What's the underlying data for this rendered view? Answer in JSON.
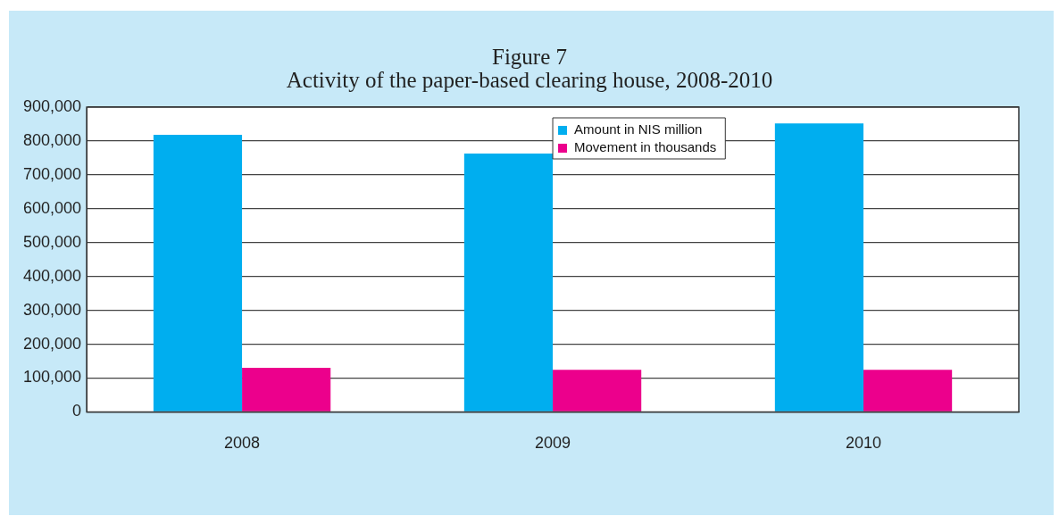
{
  "chart_data": {
    "type": "bar",
    "title": "Figure 7",
    "subtitle": "Activity of the paper-based clearing house, 2008-2010",
    "categories": [
      "2008",
      "2009",
      "2010"
    ],
    "series": [
      {
        "name": "Amount in NIS million",
        "color": "#00aeef",
        "values": [
          818000,
          763000,
          852000
        ]
      },
      {
        "name": "Movement in thousands",
        "color": "#ec008c",
        "values": [
          130000,
          124000,
          124000
        ]
      }
    ],
    "ylim": [
      0,
      900000
    ],
    "yticks": [
      0,
      {
        "value": 100000,
        "label": "100,000"
      },
      {
        "value": 200000,
        "label": "200,000"
      },
      {
        "value": 300000,
        "label": "300,000"
      },
      {
        "value": 400000,
        "label": "400,000"
      },
      {
        "value": 500000,
        "label": "500,000"
      },
      {
        "value": 600000,
        "label": "600,000"
      },
      {
        "value": 700000,
        "label": "700,000"
      },
      {
        "value": 800000,
        "label": "800,000"
      },
      {
        "value": 900000,
        "label": "900,000"
      }
    ],
    "grid": "y",
    "legend": "top right"
  }
}
